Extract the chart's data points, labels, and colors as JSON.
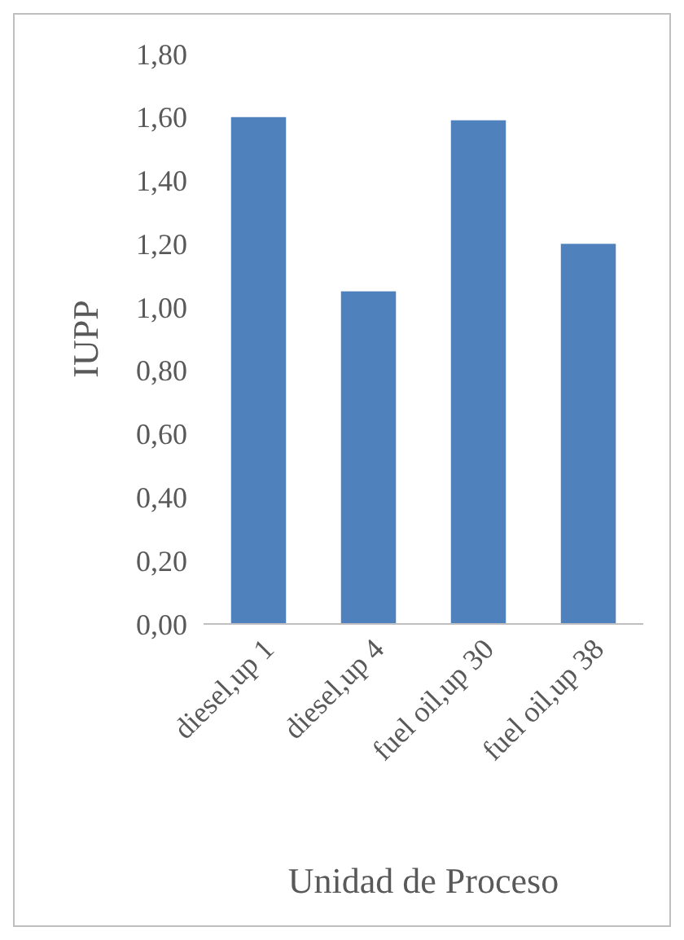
{
  "chart_data": {
    "type": "bar",
    "xlabel": "Unidad de Proceso",
    "ylabel": "IUPP",
    "categories": [
      "diesel,up 1",
      "diesel,up 4",
      "fuel oil,up 30",
      "fuel oil,up 38"
    ],
    "values": [
      1.6,
      1.05,
      1.59,
      1.2
    ],
    "color": "#4f81bd",
    "ylim": [
      0,
      1.8
    ],
    "yticks": [
      {
        "value": 0,
        "label": "0,00"
      },
      {
        "value": 0.2,
        "label": "0,20"
      },
      {
        "value": 0.4,
        "label": "0,40"
      },
      {
        "value": 0.6,
        "label": "0,60"
      },
      {
        "value": 0.8,
        "label": "0,80"
      },
      {
        "value": 1.0,
        "label": "1,00"
      },
      {
        "value": 1.2,
        "label": "1,20"
      },
      {
        "value": 1.4,
        "label": "1,40"
      },
      {
        "value": 1.6,
        "label": "1,60"
      },
      {
        "value": 1.8,
        "label": "1,80"
      }
    ]
  }
}
